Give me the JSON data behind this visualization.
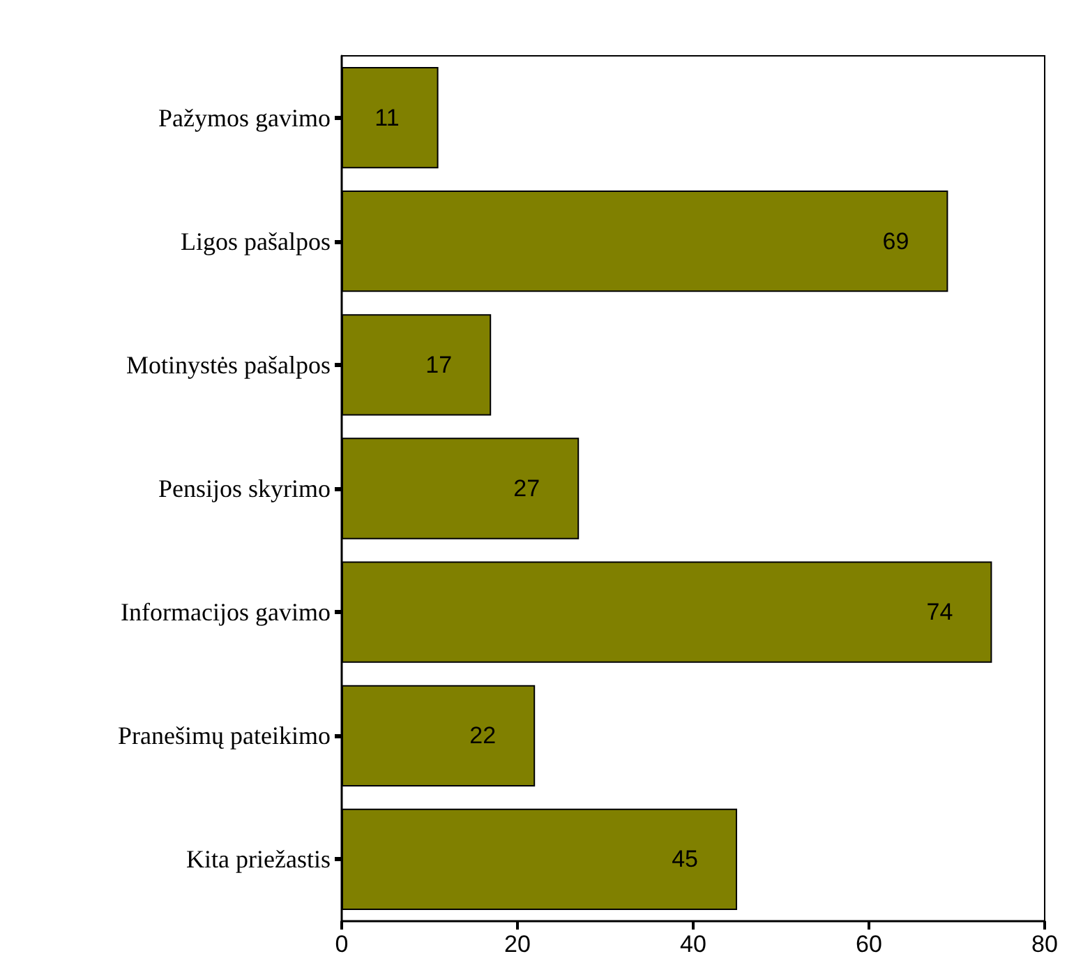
{
  "chart_data": {
    "type": "bar",
    "orientation": "horizontal",
    "categories": [
      "Pažymos gavimo",
      "Ligos pašalpos",
      "Motinystės pašalpos",
      "Pensijos skyrimo",
      "Informacijos gavimo",
      "Pranešimų pateikimo",
      "Kita priežastis"
    ],
    "values": [
      11,
      69,
      17,
      27,
      74,
      22,
      45
    ],
    "color": "#808000",
    "xlim": [
      0,
      80
    ],
    "xticks": [
      0,
      20,
      40,
      60,
      80
    ],
    "data_labels": true,
    "grid": false
  }
}
